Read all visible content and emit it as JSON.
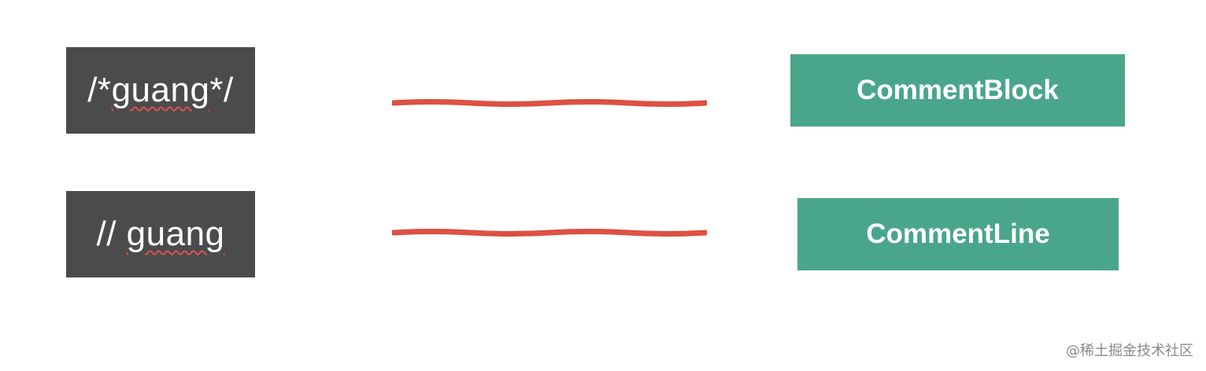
{
  "rows": [
    {
      "code_prefix": "/*",
      "code_word": "guang",
      "code_suffix": "*/",
      "node_label": "CommentBlock"
    },
    {
      "code_prefix": "// ",
      "code_word": "guang",
      "code_suffix": "",
      "node_label": "CommentLine"
    }
  ],
  "colors": {
    "code_box_bg": "#4b4b4b",
    "node_box_bg": "#4aa68b",
    "connector": "#d93a2f",
    "spellcheck_underline": "#d9534f"
  },
  "watermark": "@稀土掘金技术社区"
}
